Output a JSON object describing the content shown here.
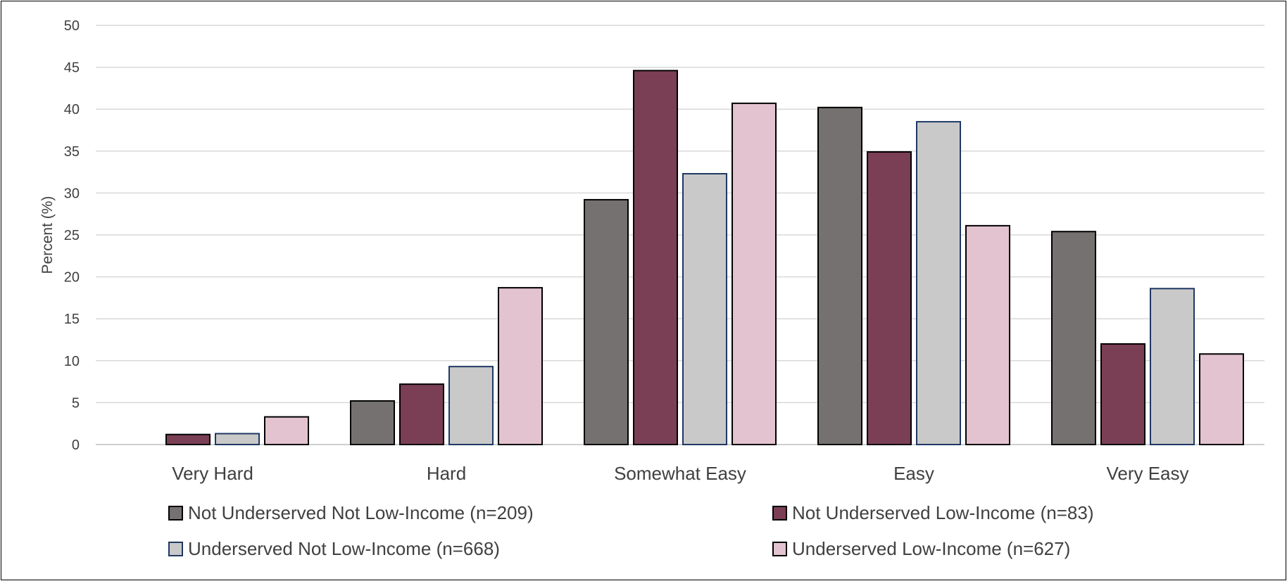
{
  "chart_data": {
    "type": "bar",
    "title": "",
    "xlabel": "",
    "ylabel": "Percent (%)",
    "ylim": [
      0,
      50
    ],
    "yticks": [
      0,
      5,
      10,
      15,
      20,
      25,
      30,
      35,
      40,
      45,
      50
    ],
    "grid": true,
    "legend_position": "bottom",
    "categories": [
      "Very Hard",
      "Hard",
      "Somewhat Easy",
      "Easy",
      "Very Easy"
    ],
    "series": [
      {
        "name": "Not Underserved Not Low-Income (n=209)",
        "color": "#767171",
        "stroke": "#000000",
        "values": [
          0,
          5.2,
          29.2,
          40.2,
          25.4
        ]
      },
      {
        "name": "Not Underserved Low-Income (n=83)",
        "color": "#7b3f55",
        "stroke": "#000000",
        "values": [
          1.2,
          7.2,
          44.6,
          34.9,
          12.0
        ]
      },
      {
        "name": "Underserved Not Low-Income (n=668)",
        "color": "#c9c9c9",
        "stroke": "#1f3864",
        "values": [
          1.3,
          9.3,
          32.3,
          38.5,
          18.6
        ]
      },
      {
        "name": "Underserved Low-Income (n=627)",
        "color": "#e3c3cf",
        "stroke": "#000000",
        "values": [
          3.3,
          18.7,
          40.7,
          26.1,
          10.8
        ]
      }
    ]
  }
}
